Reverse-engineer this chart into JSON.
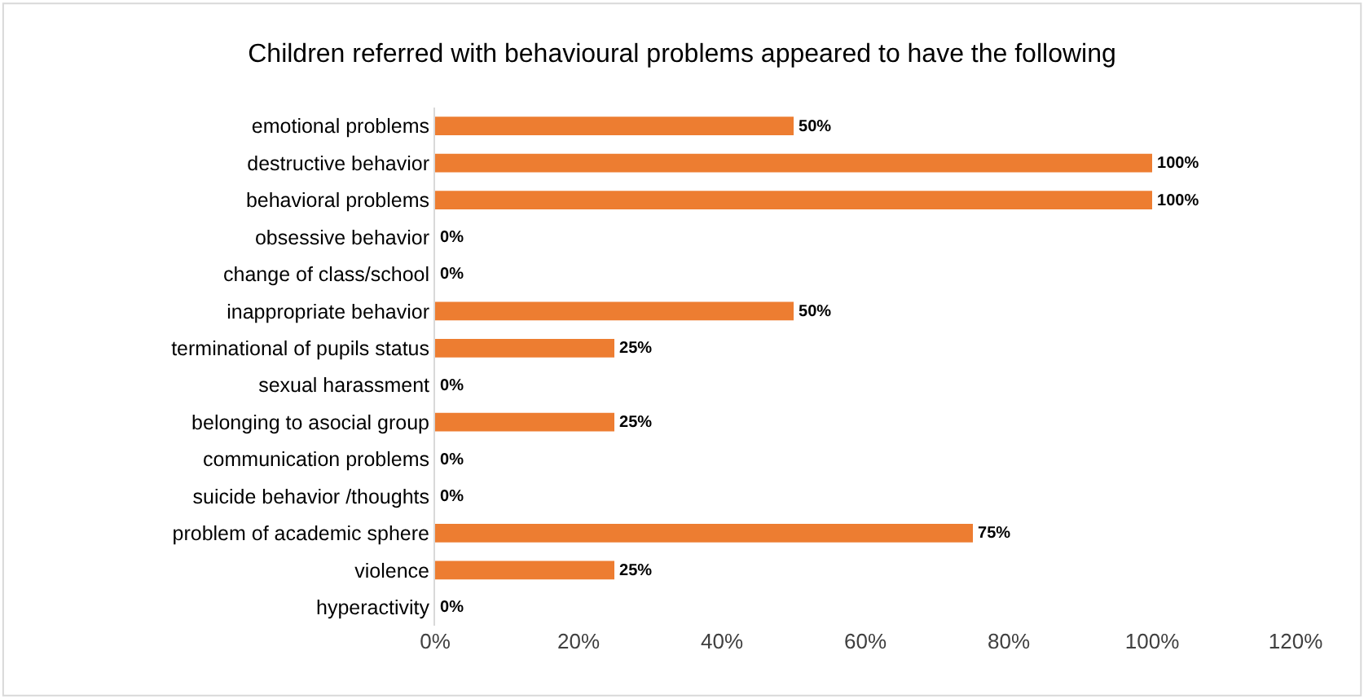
{
  "chart_data": {
    "type": "bar",
    "orientation": "horizontal",
    "title": "Children referred with behavioural problems appeared to have the following",
    "categories": [
      "emotional problems",
      "destructive behavior",
      "behavioral problems",
      "obsessive behavior",
      "change of class/school",
      "inappropriate behavior",
      "terminational of pupils status",
      "sexual harassment",
      "belonging to asocial group",
      "communication problems",
      "suicide behavior /thoughts",
      "problem of academic sphere",
      "violence",
      "hyperactivity"
    ],
    "values": [
      50,
      100,
      100,
      0,
      0,
      50,
      25,
      0,
      25,
      0,
      0,
      75,
      25,
      0
    ],
    "value_labels": [
      "50%",
      "100%",
      "100%",
      "0%",
      "0%",
      "50%",
      "25%",
      "0%",
      "25%",
      "0%",
      "0%",
      "75%",
      "25%",
      "0%"
    ],
    "color": "#ed7d31",
    "xlim": [
      0,
      120
    ],
    "xticks": [
      {
        "value": 0,
        "label": "0%"
      },
      {
        "value": 20,
        "label": "20%"
      },
      {
        "value": 40,
        "label": "40%"
      },
      {
        "value": 60,
        "label": "60%"
      },
      {
        "value": 80,
        "label": "80%"
      },
      {
        "value": 100,
        "label": "100%"
      },
      {
        "value": 120,
        "label": "120%"
      }
    ],
    "legend": false
  }
}
